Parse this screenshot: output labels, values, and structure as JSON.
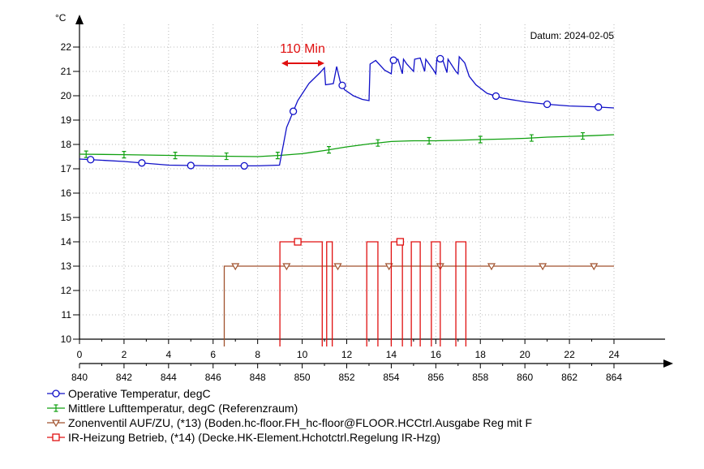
{
  "chart_data": {
    "type": "line",
    "y_unit_label": "°C",
    "date_label": "Datum: 2024-02-05",
    "annotation": {
      "text": "110 Min",
      "color": "#e01010"
    },
    "x_top_ticks": [
      "0",
      "2",
      "4",
      "6",
      "8",
      "10",
      "12",
      "14",
      "16",
      "18",
      "20",
      "22",
      "24"
    ],
    "x_bottom_ticks": [
      "840",
      "842",
      "844",
      "846",
      "848",
      "850",
      "852",
      "854",
      "856",
      "858",
      "860",
      "862",
      "864"
    ],
    "xlim": [
      0,
      24
    ],
    "ylim": [
      9.7,
      22.6
    ],
    "y_ticks": [
      "10",
      "11",
      "12",
      "13",
      "14",
      "15",
      "16",
      "17",
      "18",
      "19",
      "20",
      "21",
      "22"
    ],
    "series": [
      {
        "name": "Operative Temperatur, degC",
        "color": "#1010c8",
        "marker": "circle",
        "x": [
          0,
          2,
          4,
          6,
          8,
          8.98,
          9.3,
          9.8,
          10.3,
          10.8,
          11.0,
          11.05,
          11.4,
          11.55,
          11.7,
          11.9,
          12.3,
          12.7,
          13.0,
          13.05,
          13.3,
          13.7,
          14.0,
          14.05,
          14.3,
          14.5,
          14.55,
          14.7,
          15.0,
          15.05,
          15.3,
          15.5,
          15.55,
          15.9,
          16.0,
          16.05,
          16.3,
          16.5,
          16.55,
          16.9,
          17.0,
          17.05,
          17.3,
          17.5,
          17.8,
          18.3,
          19.0,
          20.0,
          21.0,
          22.0,
          23.0,
          24.0
        ],
        "values": [
          17.4,
          17.3,
          17.15,
          17.12,
          17.12,
          17.15,
          18.7,
          19.8,
          20.5,
          20.95,
          21.15,
          20.45,
          20.5,
          21.2,
          20.6,
          20.25,
          20.0,
          19.85,
          19.8,
          21.3,
          21.45,
          21.05,
          20.9,
          21.45,
          21.5,
          20.9,
          21.5,
          21.3,
          21.0,
          21.5,
          21.55,
          21.0,
          21.5,
          21.05,
          20.9,
          21.55,
          21.5,
          20.95,
          21.5,
          21.0,
          20.9,
          21.6,
          21.35,
          20.8,
          20.45,
          20.1,
          19.9,
          19.75,
          19.65,
          19.58,
          19.55,
          19.5
        ],
        "marker_x": [
          0.5,
          2.8,
          5.0,
          7.4,
          9.6,
          11.8,
          14.1,
          16.2,
          18.7,
          21.0,
          23.3
        ]
      },
      {
        "name": "Mittlere Lufttemperatur, degC (Referenzraum)",
        "color": "#10a010",
        "marker": "errorbar",
        "x": [
          0,
          2,
          4,
          6,
          8,
          9,
          10,
          11,
          12,
          13,
          14,
          15,
          16,
          17,
          18,
          19,
          20,
          21,
          22,
          23,
          24
        ],
        "values": [
          17.6,
          17.58,
          17.55,
          17.52,
          17.5,
          17.55,
          17.62,
          17.75,
          17.9,
          18.02,
          18.12,
          18.15,
          18.15,
          18.17,
          18.2,
          18.22,
          18.25,
          18.3,
          18.33,
          18.36,
          18.4
        ],
        "marker_x": [
          0.3,
          2.0,
          4.3,
          6.6,
          8.9,
          11.2,
          13.4,
          15.7,
          18.0,
          20.3,
          22.6
        ]
      },
      {
        "name": "Zonenventil AUF/ZU, (*13)  (Boden.hc-floor.FH_hc-floor@FLOOR.HCCtrl.Ausgabe Reg mit F",
        "color": "#a0522d",
        "marker": "triangle-down",
        "x": [
          6.5,
          6.5,
          24
        ],
        "values": [
          9.7,
          13.0,
          13.0
        ],
        "marker_x": [
          7.0,
          9.3,
          11.6,
          13.9,
          16.2,
          18.5,
          20.8,
          23.1
        ]
      },
      {
        "name": "IR-Heizung Betrieb, (*14)  (Decke.HK-Element.Hchotctrl.Regelung IR-Hzg)",
        "color": "#e01010",
        "marker": "square",
        "pulses": [
          [
            9.0,
            10.9
          ],
          [
            11.1,
            11.35
          ],
          [
            12.9,
            13.4
          ],
          [
            14.0,
            14.5
          ],
          [
            14.9,
            15.3
          ],
          [
            15.8,
            16.2
          ],
          [
            16.9,
            17.35
          ]
        ],
        "on_value": 14.0,
        "marker_x": [
          9.8,
          14.4
        ]
      }
    ],
    "grid": true,
    "legend_position": "bottom"
  }
}
